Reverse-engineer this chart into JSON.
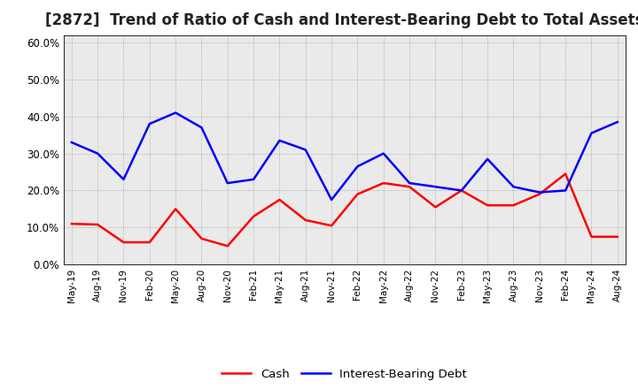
{
  "title": "[2872]  Trend of Ratio of Cash and Interest-Bearing Debt to Total Assets",
  "x_labels": [
    "May-19",
    "Aug-19",
    "Nov-19",
    "Feb-20",
    "May-20",
    "Aug-20",
    "Nov-20",
    "Feb-21",
    "May-21",
    "Aug-21",
    "Nov-21",
    "Feb-22",
    "May-22",
    "Aug-22",
    "Nov-22",
    "Feb-23",
    "May-23",
    "Aug-23",
    "Nov-23",
    "Feb-24",
    "May-24",
    "Aug-24"
  ],
  "cash": [
    0.11,
    0.108,
    0.06,
    0.06,
    0.15,
    0.07,
    0.05,
    0.13,
    0.175,
    0.12,
    0.105,
    0.19,
    0.22,
    0.21,
    0.155,
    0.2,
    0.16,
    0.16,
    0.19,
    0.245,
    0.075,
    0.075
  ],
  "ibd": [
    0.33,
    0.3,
    0.23,
    0.38,
    0.41,
    0.37,
    0.22,
    0.23,
    0.335,
    0.31,
    0.175,
    0.265,
    0.3,
    0.22,
    0.21,
    0.2,
    0.285,
    0.21,
    0.195,
    0.2,
    0.355,
    0.385
  ],
  "cash_color": "#ff0000",
  "ibd_color": "#0000ff",
  "background_color": "#ffffff",
  "plot_bg_color": "#eaeaea",
  "grid_color": "#888888",
  "ylim": [
    0.0,
    0.62
  ],
  "yticks": [
    0.0,
    0.1,
    0.2,
    0.3,
    0.4,
    0.5,
    0.6
  ],
  "title_fontsize": 12,
  "legend_cash": "Cash",
  "legend_ibd": "Interest-Bearing Debt"
}
